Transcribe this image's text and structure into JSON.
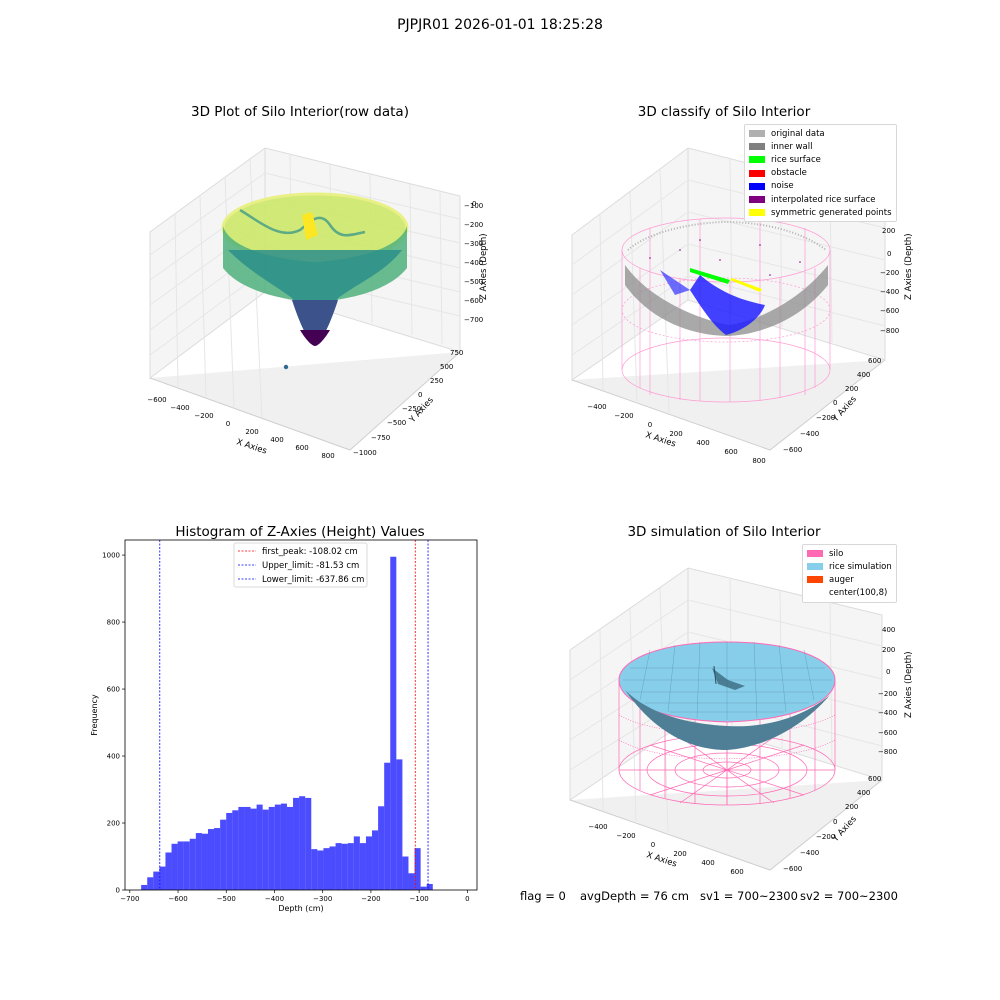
{
  "suptitle": "PJPJR01 2026-01-01 18:25:28",
  "panels": {
    "raw": {
      "title": "3D Plot of Silo Interior(row data)",
      "xlabel": "X Axies",
      "ylabel": "Y Axies",
      "zlabel": "Z Axies (Depth)",
      "xticks": [
        "−600",
        "−400",
        "−200",
        "0",
        "200",
        "400",
        "600",
        "800"
      ],
      "yticks": [
        "−1000",
        "−750",
        "−500",
        "−250",
        "0",
        "250",
        "500",
        "750"
      ],
      "zticks": [
        "−700",
        "−600",
        "−500",
        "−400",
        "−300",
        "−200",
        "−100",
        "0"
      ]
    },
    "classify": {
      "title": "3D classify of Silo Interior",
      "xlabel": "X Axies",
      "ylabel": "Y Axies",
      "zlabel": "Z Axies (Depth)",
      "xticks": [
        "−400",
        "−200",
        "0",
        "200",
        "400",
        "600",
        "800"
      ],
      "yticks": [
        "−600",
        "−400",
        "−200",
        "0",
        "200",
        "400",
        "600"
      ],
      "zticks": [
        "−800",
        "−600",
        "−400",
        "−200",
        "0",
        "200"
      ],
      "legend": [
        {
          "label": "original data",
          "color": "#b0b0b0"
        },
        {
          "label": "inner wall",
          "color": "#808080"
        },
        {
          "label": "rice surface",
          "color": "#00ff00"
        },
        {
          "label": "obstacle",
          "color": "#ff0000"
        },
        {
          "label": "noise",
          "color": "#0000ff"
        },
        {
          "label": "interpolated rice surface",
          "color": "#800080"
        },
        {
          "label": "symmetric generated points",
          "color": "#ffff00"
        }
      ]
    },
    "simulation": {
      "title": "3D simulation of Silo Interior",
      "xlabel": "X Axies",
      "ylabel": "Y Axies",
      "zlabel": "Z Axies (Depth)",
      "xticks": [
        "−400",
        "−200",
        "0",
        "200",
        "400",
        "600"
      ],
      "yticks": [
        "−600",
        "−400",
        "−200",
        "0",
        "200",
        "400",
        "600"
      ],
      "zticks": [
        "−800",
        "−600",
        "−400",
        "−200",
        "0",
        "200",
        "400"
      ],
      "legend": [
        {
          "label": "silo",
          "color": "#ff69b4"
        },
        {
          "label": "rice simulation",
          "color": "#87ceeb"
        },
        {
          "label": "auger",
          "color": "#ff4500"
        },
        {
          "label": "center(100,8)",
          "color": "#ffffff"
        }
      ]
    }
  },
  "chart_data": [
    {
      "type": "bar",
      "title": "Histogram of Z-Axies (Height) Values",
      "xlabel": "Depth (cm)",
      "ylabel": "Frequency",
      "xlim": [
        -710,
        20
      ],
      "ylim": [
        0,
        1045
      ],
      "xticks": [
        -700,
        -600,
        -500,
        -400,
        -300,
        -200,
        -100,
        0
      ],
      "yticks": [
        0,
        200,
        400,
        600,
        800,
        1000
      ],
      "bin_width": 12.6,
      "bin_start": -676.5,
      "values": [
        15,
        38,
        55,
        70,
        112,
        138,
        145,
        145,
        153,
        170,
        168,
        182,
        185,
        210,
        230,
        238,
        248,
        248,
        243,
        255,
        240,
        248,
        255,
        258,
        248,
        275,
        280,
        275,
        122,
        118,
        125,
        130,
        140,
        138,
        140,
        160,
        140,
        160,
        178,
        250,
        380,
        995,
        390,
        100,
        50,
        125,
        10,
        18
      ],
      "color": "#0000ff",
      "lines": [
        {
          "label": "first_peak: -108.02 cm",
          "x": -108.02,
          "color": "#ff0000"
        },
        {
          "label": "Upper_limit: -81.53 cm",
          "x": -81.53,
          "color": "#0000ff"
        },
        {
          "label": "Lower_limit: -637.86 cm",
          "x": -637.86,
          "color": "#0000ff"
        }
      ],
      "legend_position": "top-center"
    }
  ],
  "status": {
    "flag": "flag = 0",
    "avg_depth": "avgDepth = 76 cm",
    "sv1": "sv1 = 700~2300",
    "sv2": "sv2 = 700~2300"
  }
}
